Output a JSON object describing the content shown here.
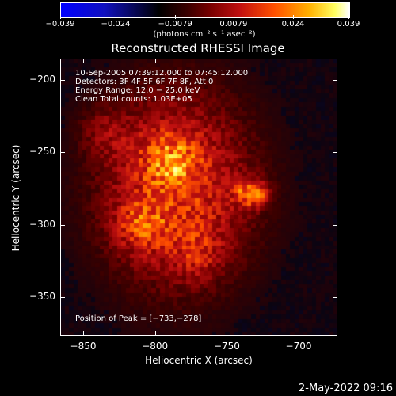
{
  "colorbar": {
    "labels": [
      "−0.039",
      "−0.024",
      "−0.0079",
      "0.0079",
      "0.024",
      "0.039"
    ],
    "units": "(photons cm⁻² s⁻¹ asec⁻²)"
  },
  "title": "Reconstructed RHESSI Image",
  "annotations": {
    "time_range": "10-Sep-2005 07:39:12.000 to 07:45:12.000",
    "detectors": "Detectors: 3F 4F 5F 6F 7F 8F, Att 0",
    "energy": "Energy Range: 12.0 − 25.0 keV",
    "clean": "Clean     Total counts: 1.03E+05",
    "peak": "Position of Peak = [−733,−278]"
  },
  "axes": {
    "xlabel": "Heliocentric X (arcsec)",
    "ylabel": "Heliocentric Y (arcsec)",
    "xticks": [
      "−850",
      "−800",
      "−750",
      "−700"
    ],
    "yticks": [
      "−200",
      "−250",
      "−300",
      "−350"
    ]
  },
  "footer": "2-May-2022 09:16",
  "chart_data": {
    "type": "heatmap",
    "title": "Reconstructed RHESSI Image",
    "xlabel": "Heliocentric X (arcsec)",
    "ylabel": "Heliocentric Y (arcsec)",
    "xlim": [
      -866,
      -673
    ],
    "ylim": [
      -377,
      -185
    ],
    "xticks": [
      -850,
      -800,
      -750,
      -700
    ],
    "yticks": [
      -200,
      -250,
      -300,
      -350
    ],
    "colorbar_range": [
      -0.039,
      0.039
    ],
    "colorbar_ticks": [
      -0.039,
      -0.024,
      -0.0079,
      0.0079,
      0.024,
      0.039
    ],
    "colormap": "blue-black-red-yellow-white",
    "peak_position": [
      -733,
      -278
    ],
    "sources": [
      {
        "x": -733,
        "y": -278,
        "relative_intensity": 1.0
      },
      {
        "x": -790,
        "y": -255,
        "relative_intensity": 0.55
      },
      {
        "x": -810,
        "y": -300,
        "relative_intensity": 0.45
      },
      {
        "x": -835,
        "y": -235,
        "relative_intensity": 0.3
      },
      {
        "x": -770,
        "y": -320,
        "relative_intensity": 0.3
      }
    ],
    "grid": false
  }
}
